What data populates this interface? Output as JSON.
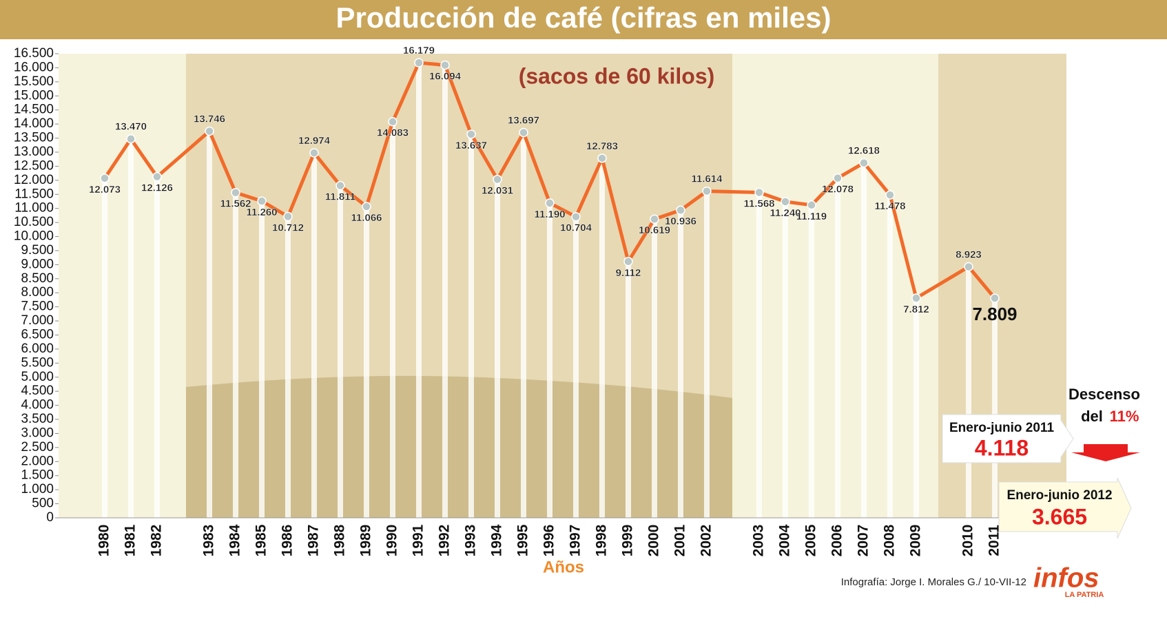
{
  "chart_data": {
    "type": "line",
    "title": "Producción de café (cifras en miles)",
    "subtitle": "(sacos de 60 kilos)",
    "x_label": "Años",
    "categories": [
      "1980",
      "1981",
      "1982",
      "1983",
      "1984",
      "1985",
      "1986",
      "1987",
      "1988",
      "1989",
      "1990",
      "1991",
      "1992",
      "1993",
      "1994",
      "1995",
      "1996",
      "1997",
      "1998",
      "1999",
      "2000",
      "2001",
      "2002",
      "2003",
      "2004",
      "2005",
      "2006",
      "2007",
      "2008",
      "2009",
      "2010",
      "2011"
    ],
    "values": [
      12073,
      13470,
      12126,
      13746,
      11562,
      11260,
      10712,
      12974,
      11811,
      11066,
      14083,
      16179,
      16094,
      13637,
      12031,
      13697,
      11190,
      10704,
      12783,
      9112,
      10619,
      10936,
      11614,
      11568,
      11240,
      11119,
      12078,
      12618,
      11478,
      7812,
      8923,
      7809
    ],
    "value_labels": [
      "12.073",
      "13.470",
      "12.126",
      "13.746",
      "11.562",
      "11.260",
      "10.712",
      "12.974",
      "11.811",
      "11.066",
      "14.083",
      "16.179",
      "16.094",
      "13.637",
      "12.031",
      "13.697",
      "11.190",
      "10.704",
      "12.783",
      "9.112",
      "10.619",
      "10.936",
      "11.614",
      "11.568",
      "11.240",
      "11.119",
      "12.078",
      "12.618",
      "11.478",
      "7.812",
      "8.923",
      "7.809"
    ],
    "color": "#f26b2a",
    "ylim": [
      0,
      16500
    ],
    "yticks": [
      0,
      500,
      {
        "value": 1000,
        "label": "1.000"
      },
      {
        "value": 1500,
        "label": "1.500"
      },
      {
        "value": 2000,
        "label": "2.000"
      },
      {
        "value": 2500,
        "label": "2.500"
      },
      {
        "value": 3000,
        "label": "3.000"
      },
      {
        "value": 3500,
        "label": "3.500"
      },
      {
        "value": 4000,
        "label": "4.000"
      },
      {
        "value": 4500,
        "label": "4.500"
      },
      {
        "value": 5000,
        "label": "5.000"
      },
      {
        "value": 5500,
        "label": "5.500"
      },
      {
        "value": 6000,
        "label": "6.000"
      },
      {
        "value": 6500,
        "label": "6.500"
      },
      {
        "value": 7000,
        "label": "7.000"
      },
      {
        "value": 7500,
        "label": "7.500"
      },
      {
        "value": 8000,
        "label": "8.000"
      },
      {
        "value": 8500,
        "label": "8.500"
      },
      {
        "value": 9000,
        "label": "9.000"
      },
      {
        "value": 9500,
        "label": "9.500"
      },
      {
        "value": 10000,
        "label": "10.000"
      },
      {
        "value": 10500,
        "label": "10.500"
      },
      {
        "value": 11000,
        "label": "11.000"
      },
      {
        "value": 11500,
        "label": "11.500"
      },
      {
        "value": 12000,
        "label": "12.000"
      },
      {
        "value": 12500,
        "label": "12.500"
      },
      {
        "value": 13000,
        "label": "13.000"
      },
      {
        "value": 13500,
        "label": "13.500"
      },
      {
        "value": 14000,
        "label": "14.000"
      },
      {
        "value": 14500,
        "label": "14.500"
      },
      {
        "value": 15000,
        "label": "15.000"
      },
      {
        "value": 15500,
        "label": "15.500"
      },
      {
        "value": 16000,
        "label": "16.000"
      },
      {
        "value": 16500,
        "label": "16.500"
      }
    ],
    "annotations": {
      "descenso": "Descenso",
      "del": "del",
      "pct": "11%",
      "period_2011": "Enero-junio 2011",
      "value_2011": "4.118",
      "period_2012": "Enero-junio 2012",
      "value_2012": "3.665"
    },
    "credit": "Infografía: Jorge I. Morales G./ 10-VII-12",
    "logo": "infos",
    "logo_sub": "LA PATRIA"
  }
}
